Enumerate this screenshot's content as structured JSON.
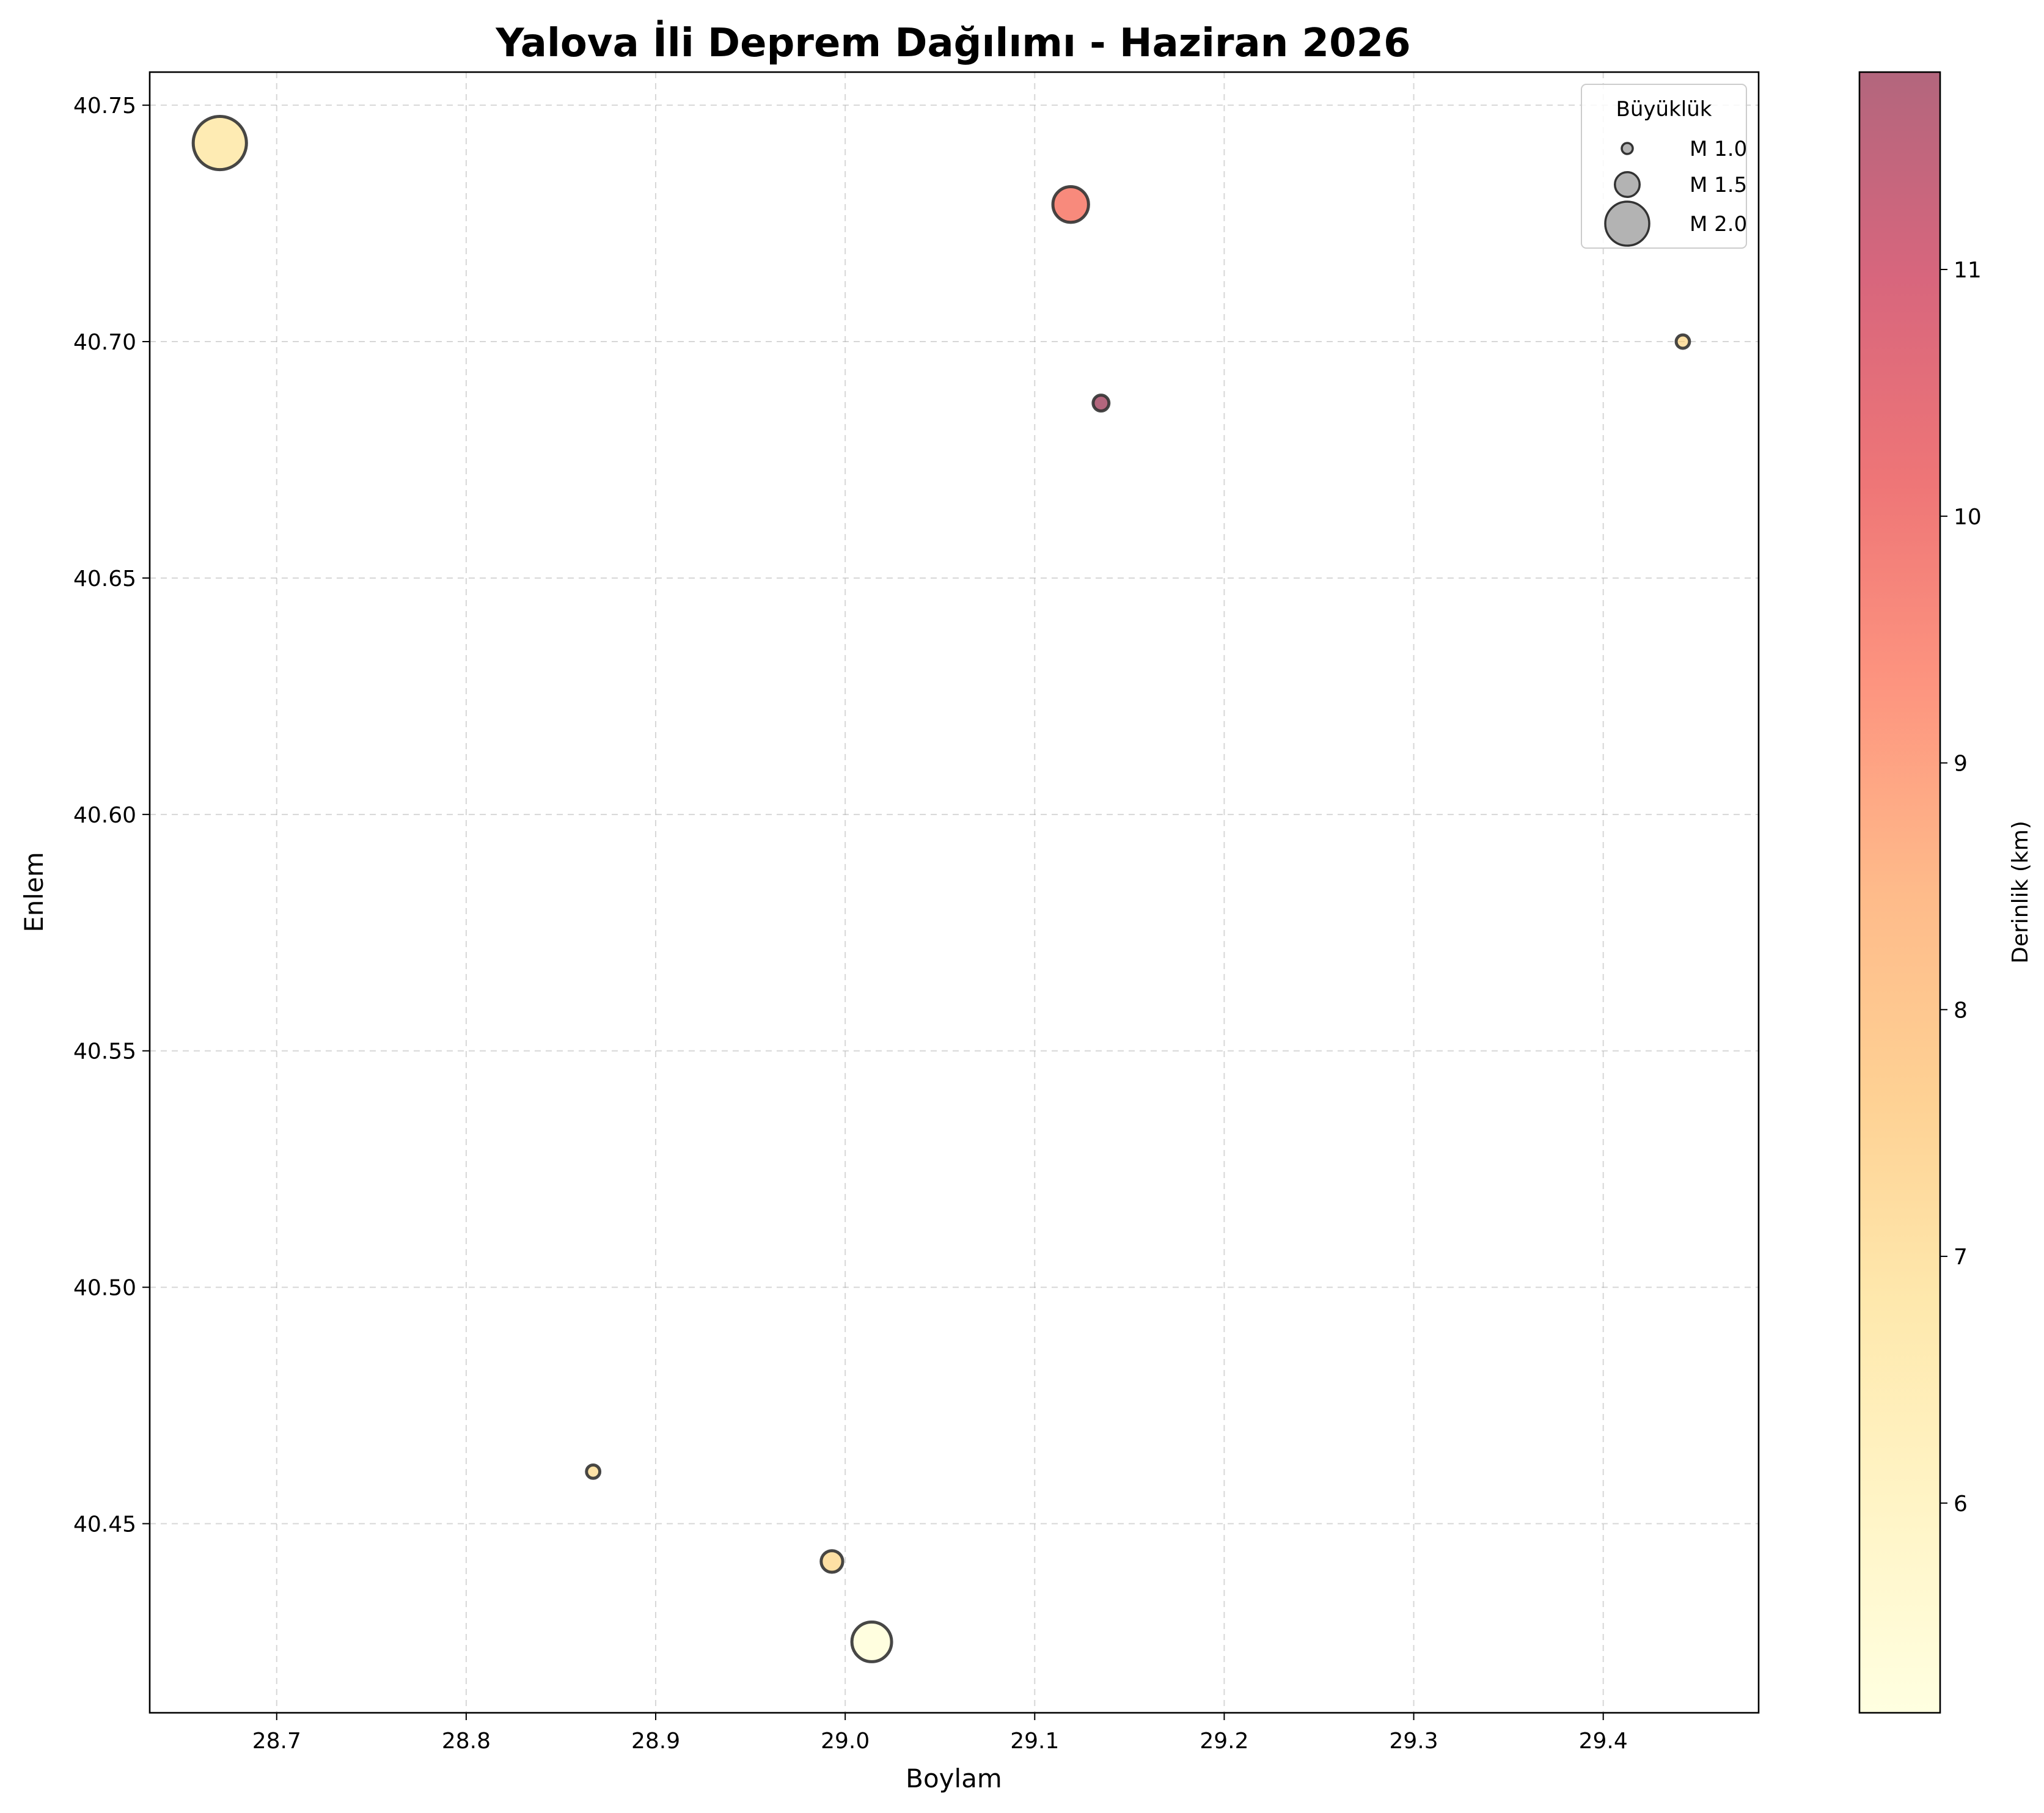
{
  "chart_data": {
    "type": "scatter",
    "title": "Yalova İli Deprem Dağılımı - Haziran 2026",
    "xlabel": "Boylam",
    "ylabel": "Enlem",
    "xlim": [
      28.633,
      29.482
    ],
    "ylim": [
      40.41,
      40.757
    ],
    "xticks": [
      "28.7",
      "28.8",
      "28.9",
      "29.0",
      "29.1",
      "29.2",
      "29.3",
      "29.4"
    ],
    "xtick_values": [
      28.7,
      28.8,
      28.9,
      29.0,
      29.1,
      29.2,
      29.3,
      29.4
    ],
    "yticks": [
      "40.45",
      "40.50",
      "40.55",
      "40.60",
      "40.65",
      "40.70",
      "40.75"
    ],
    "ytick_values": [
      40.45,
      40.5,
      40.55,
      40.6,
      40.65,
      40.7,
      40.75
    ],
    "grid": true,
    "points": [
      {
        "lon": 28.67,
        "lat": 40.742,
        "magnitude": 2.2,
        "depth": 6.6
      },
      {
        "lon": 29.119,
        "lat": 40.729,
        "magnitude": 1.8,
        "depth": 9.6
      },
      {
        "lon": 29.135,
        "lat": 40.687,
        "magnitude": 1.2,
        "depth": 11.8
      },
      {
        "lon": 29.442,
        "lat": 40.7,
        "magnitude": 1.1,
        "depth": 7.1
      },
      {
        "lon": 28.867,
        "lat": 40.461,
        "magnitude": 1.1,
        "depth": 7.0
      },
      {
        "lon": 28.993,
        "lat": 40.442,
        "magnitude": 1.4,
        "depth": 7.1
      },
      {
        "lon": 29.014,
        "lat": 40.425,
        "magnitude": 1.9,
        "depth": 5.2
      }
    ],
    "legend": {
      "title": "Büyüklük",
      "placement": "top-right",
      "entries": [
        {
          "label": "M 1.0",
          "magnitude": 1.0
        },
        {
          "label": "M 1.5",
          "magnitude": 1.5
        },
        {
          "label": "M 2.0",
          "magnitude": 2.0
        }
      ]
    },
    "colorbar": {
      "label": "Derinlik (km)",
      "colormap": "YlOrRd",
      "alpha": 0.6,
      "range": [
        5.15,
        11.8
      ],
      "tick_values": [
        6,
        7,
        8,
        9,
        10,
        11
      ],
      "ticks": [
        "6",
        "7",
        "8",
        "9",
        "10",
        "11"
      ]
    },
    "colors": {
      "marker_edge": "#333333",
      "legend_marker": "#808080"
    }
  }
}
